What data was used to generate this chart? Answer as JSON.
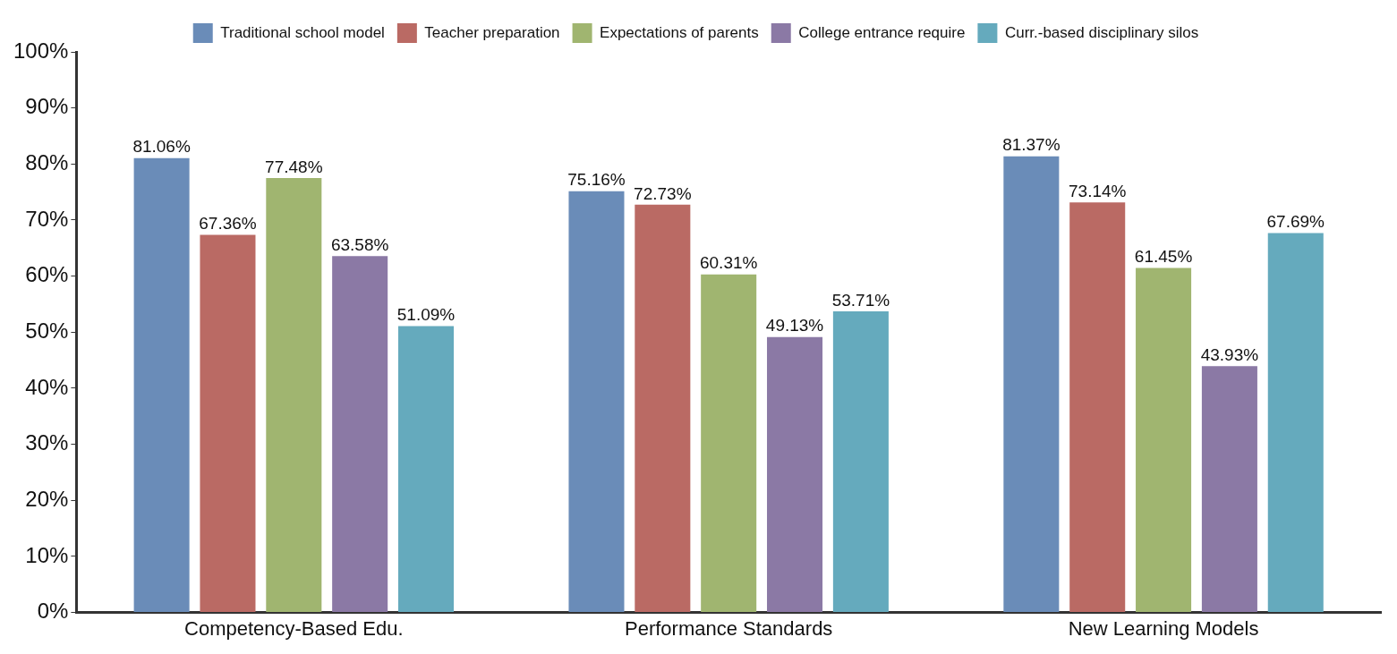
{
  "chart_data": {
    "type": "bar",
    "categories": [
      "Competency-Based Edu.",
      "Performance Standards",
      "New Learning Models"
    ],
    "series": [
      {
        "name": "Traditional school model",
        "color": "#6a8cb8",
        "values": [
          81.06,
          75.16,
          81.37
        ],
        "value_labels": [
          "81.06%",
          "75.16%",
          "81.37%"
        ]
      },
      {
        "name": "Teacher preparation",
        "color": "#ba6a64",
        "values": [
          67.36,
          72.73,
          73.14
        ],
        "value_labels": [
          "67.36%",
          "72.73%",
          "73.14%"
        ]
      },
      {
        "name": "Expectations of parents",
        "color": "#a0b570",
        "values": [
          77.48,
          60.31,
          61.45
        ],
        "value_labels": [
          "77.48%",
          "60.31%",
          "61.45%"
        ]
      },
      {
        "name": "College entrance require",
        "color": "#8b79a5",
        "values": [
          63.58,
          49.13,
          43.93
        ],
        "value_labels": [
          "63.58%",
          "49.13%",
          "43.93%"
        ]
      },
      {
        "name": "Curr.-based disciplinary silos",
        "color": "#65aabd",
        "values": [
          51.09,
          53.71,
          67.69
        ],
        "value_labels": [
          "51.09%",
          "53.71%",
          "67.69%"
        ]
      }
    ],
    "ylim": [
      0,
      100
    ],
    "yticks": [
      {
        "value": 0,
        "label": "0%"
      },
      {
        "value": 10,
        "label": "10%"
      },
      {
        "value": 20,
        "label": "20%"
      },
      {
        "value": 30,
        "label": "30%"
      },
      {
        "value": 40,
        "label": "40%"
      },
      {
        "value": 50,
        "label": "50%"
      },
      {
        "value": 60,
        "label": "60%"
      },
      {
        "value": 70,
        "label": "70%"
      },
      {
        "value": 80,
        "label": "80%"
      },
      {
        "value": 90,
        "label": "90%"
      },
      {
        "value": 100,
        "label": "100%"
      }
    ],
    "legend": "top"
  }
}
